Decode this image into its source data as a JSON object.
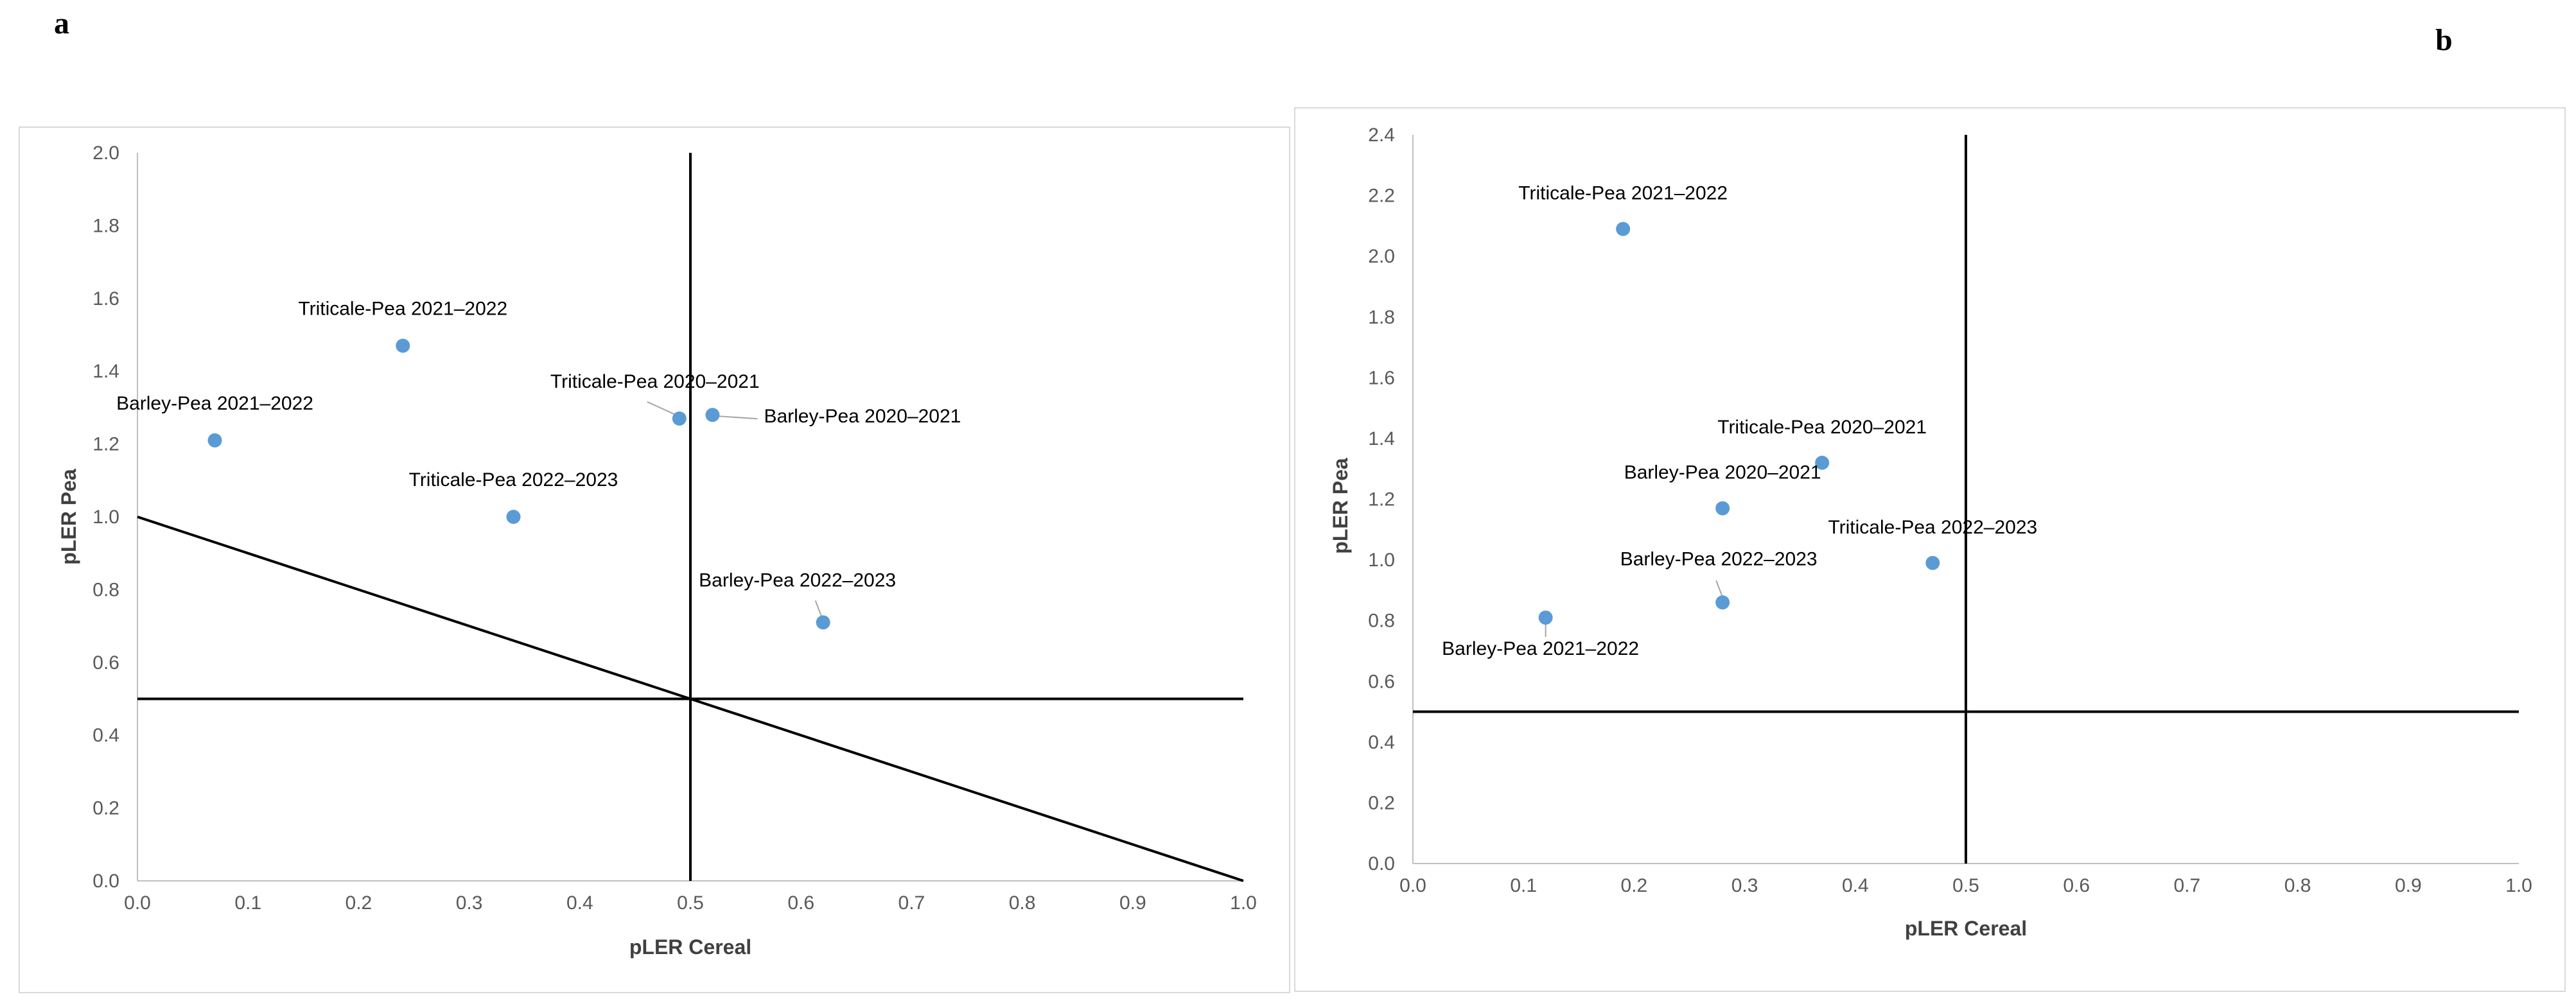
{
  "panel_labels": [
    "a",
    "b"
  ],
  "chart_data": [
    {
      "type": "scatter",
      "panel": "a",
      "xlabel": "pLER Cereal",
      "ylabel": "pLER Pea",
      "xlim": [
        0.0,
        1.0
      ],
      "ylim": [
        0.0,
        2.0
      ],
      "xticks": [
        "0.0",
        "0.1",
        "0.2",
        "0.3",
        "0.4",
        "0.5",
        "0.6",
        "0.7",
        "0.8",
        "0.9",
        "1.0"
      ],
      "yticks": [
        "0.0",
        "0.2",
        "0.4",
        "0.6",
        "0.8",
        "1.0",
        "1.2",
        "1.4",
        "1.6",
        "1.8",
        "2.0"
      ],
      "marker_color": "#5b9bd5",
      "reference_lines": [
        {
          "type": "vertical",
          "x": 0.5
        },
        {
          "type": "horizontal",
          "y": 0.5
        },
        {
          "type": "segment",
          "from": [
            0.0,
            1.0
          ],
          "to": [
            1.0,
            0.0
          ]
        }
      ],
      "points": [
        {
          "label": "Barley-Pea 2021–2022",
          "x": 0.07,
          "y": 1.21
        },
        {
          "label": "Triticale-Pea 2021–2022",
          "x": 0.24,
          "y": 1.47
        },
        {
          "label": "Triticale-Pea 2022–2023",
          "x": 0.34,
          "y": 1.0
        },
        {
          "label": "Triticale-Pea 2020–2021",
          "x": 0.49,
          "y": 1.27
        },
        {
          "label": "Barley-Pea 2020–2021",
          "x": 0.52,
          "y": 1.28
        },
        {
          "label": "Barley-Pea 2022–2023",
          "x": 0.62,
          "y": 0.71
        }
      ]
    },
    {
      "type": "scatter",
      "panel": "b",
      "xlabel": "pLER Cereal",
      "ylabel": "pLER Pea",
      "xlim": [
        0.0,
        1.0
      ],
      "ylim": [
        0.0,
        2.4
      ],
      "xticks": [
        "0.0",
        "0.1",
        "0.2",
        "0.3",
        "0.4",
        "0.5",
        "0.6",
        "0.7",
        "0.8",
        "0.9",
        "1.0"
      ],
      "yticks": [
        "0.0",
        "0.2",
        "0.4",
        "0.6",
        "0.8",
        "1.0",
        "1.2",
        "1.4",
        "1.6",
        "1.8",
        "2.0",
        "2.2",
        "2.4"
      ],
      "marker_color": "#5b9bd5",
      "reference_lines": [
        {
          "type": "vertical",
          "x": 0.5
        },
        {
          "type": "horizontal",
          "y": 0.5
        }
      ],
      "points": [
        {
          "label": "Triticale-Pea 2021–2022",
          "x": 0.19,
          "y": 2.09
        },
        {
          "label": "Triticale-Pea 2020–2021",
          "x": 0.37,
          "y": 1.32
        },
        {
          "label": "Barley-Pea 2020–2021",
          "x": 0.28,
          "y": 1.17
        },
        {
          "label": "Triticale-Pea 2022–2023",
          "x": 0.47,
          "y": 0.99
        },
        {
          "label": "Barley-Pea 2022–2023",
          "x": 0.28,
          "y": 0.86
        },
        {
          "label": "Barley-Pea 2021–2022",
          "x": 0.12,
          "y": 0.81
        }
      ]
    }
  ]
}
